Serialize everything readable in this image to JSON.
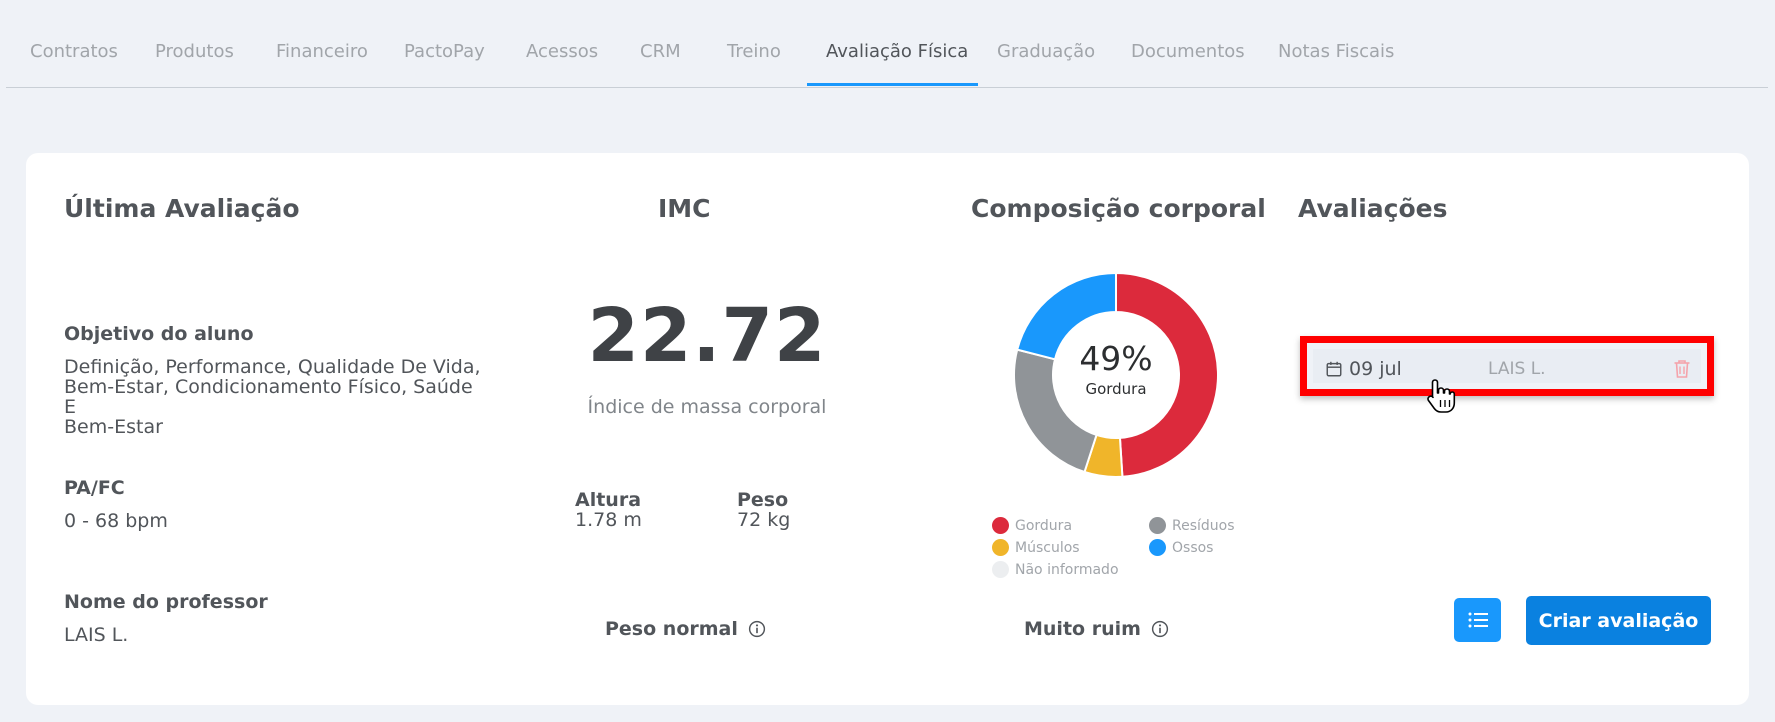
{
  "tabs": [
    {
      "label": "Contratos"
    },
    {
      "label": "Produtos"
    },
    {
      "label": "Financeiro"
    },
    {
      "label": "PactoPay"
    },
    {
      "label": "Acessos"
    },
    {
      "label": "CRM"
    },
    {
      "label": "Treino"
    },
    {
      "label": "Avaliação Física",
      "active": true
    },
    {
      "label": "Graduação"
    },
    {
      "label": "Documentos"
    },
    {
      "label": "Notas Fiscais"
    }
  ],
  "ultima": {
    "title": "Última Avaliação",
    "objetivo_label": "Objetivo do aluno",
    "objetivo_lines": [
      "Definição, Performance, Qualidade De Vida,",
      "Bem-Estar, Condicionamento Físico, Saúde E",
      "Bem-Estar"
    ],
    "pafc_label": "PA/FC",
    "pafc_value": "0 - 68 bpm",
    "professor_label": "Nome do professor",
    "professor_value": "LAIS L."
  },
  "imc": {
    "title": "IMC",
    "value": "22.72",
    "subtitle": "Índice de massa corporal",
    "altura_label": "Altura",
    "altura_value": "1.78 m",
    "peso_label": "Peso",
    "peso_value": "72 kg",
    "status": "Peso normal"
  },
  "composicao": {
    "title": "Composição corporal",
    "center_pct": "49%",
    "center_label": "Gordura",
    "status": "Muito ruim",
    "legend": [
      {
        "label": "Gordura",
        "color": "#dc2a3c"
      },
      {
        "label": "Resíduos",
        "color": "#909498"
      },
      {
        "label": "Músculos",
        "color": "#f0b52a"
      },
      {
        "label": "Ossos",
        "color": "#1998fc"
      },
      {
        "label": "Não informado",
        "color": "#eceef0"
      }
    ]
  },
  "chart_data": {
    "type": "pie",
    "categories": [
      "Gordura",
      "Músculos",
      "Resíduos",
      "Ossos"
    ],
    "values": [
      49,
      6,
      24,
      21
    ],
    "colors": [
      "#dc2a3c",
      "#f0b52a",
      "#909498",
      "#1998fc"
    ]
  },
  "avaliacoes": {
    "title": "Avaliações",
    "items": [
      {
        "date": "09 jul",
        "professor": "LAIS L."
      }
    ],
    "create_label": "Criar avaliação"
  },
  "icons": {
    "calendar": "calendar-icon",
    "trash": "trash-icon",
    "info": "info-icon",
    "list": "list-icon",
    "cursor": "hand-pointer-icon"
  }
}
